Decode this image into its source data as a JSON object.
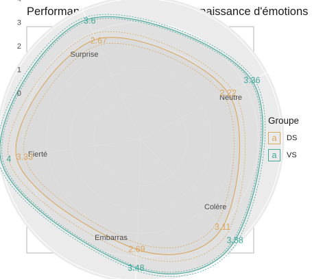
{
  "chart_data": {
    "type": "radar",
    "title": "Performances moyennes de reconnaissance d'émotions",
    "y_ticks": [
      "0",
      "1",
      "2",
      "3",
      "4"
    ],
    "categories": [
      "Neutre",
      "Colère",
      "Embarras",
      "Fierté",
      "Surprise"
    ],
    "series": [
      {
        "name": "DS",
        "values": [
          2.22,
          3.11,
          2.69,
          3.33,
          2.67
        ],
        "color": "#d9a861"
      },
      {
        "name": "VS",
        "values": [
          3.36,
          3.88,
          3.48,
          4.0,
          3.6
        ],
        "color": "#42a89a"
      }
    ],
    "legend": {
      "title": "Groupe",
      "key_glyph": "a",
      "position": "right"
    },
    "grid": true
  }
}
